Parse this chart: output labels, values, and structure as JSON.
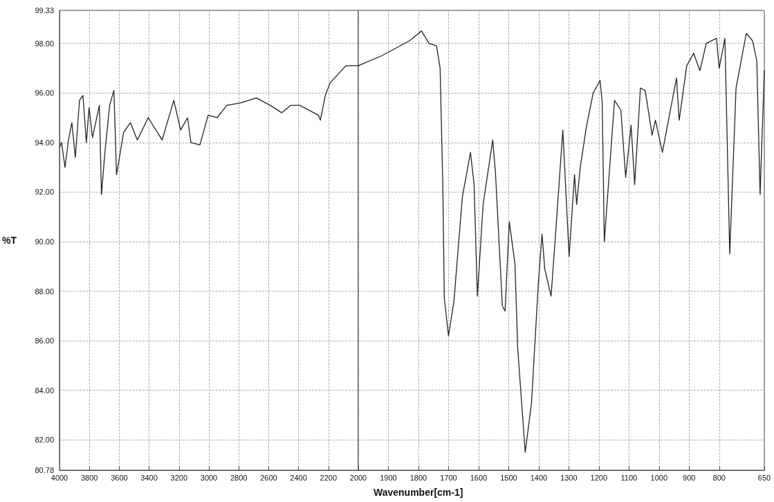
{
  "chart_data": [
    {
      "type": "line",
      "ylabel": "%T",
      "xlim": [
        4000,
        2000
      ],
      "xticks": [
        4000,
        3800,
        3600,
        3400,
        3200,
        3000,
        2800,
        2600,
        2400,
        2200,
        2000
      ],
      "ylim": [
        80.78,
        99.33
      ],
      "yticks": [
        80.78,
        {
          "value": 82,
          "label": "82.00"
        },
        {
          "value": 84,
          "label": "84.00"
        },
        {
          "value": 86,
          "label": "86.00"
        },
        {
          "value": 88,
          "label": "88.00"
        },
        {
          "value": 90,
          "label": "90.00"
        },
        {
          "value": 92,
          "label": "92.00"
        },
        {
          "value": 94,
          "label": "94.00"
        },
        {
          "value": 96,
          "label": "96.00"
        },
        {
          "value": 98,
          "label": "98.00"
        },
        99.33
      ],
      "grid": true,
      "marker": "none",
      "line_style": "solid",
      "x": [
        4000,
        3986,
        3963,
        3940,
        3917,
        3894,
        3866,
        3843,
        3820,
        3802,
        3779,
        3733,
        3719,
        3696,
        3664,
        3636,
        3618,
        3571,
        3525,
        3479,
        3406,
        3313,
        3235,
        3189,
        3143,
        3120,
        3060,
        3005,
        2945,
        2880,
        2788,
        2682,
        2590,
        2512,
        2452,
        2392,
        2267,
        2254,
        2221,
        2189,
        2083,
        2000
      ],
      "series": [
        {
          "color": "#222222",
          "values": [
            93.8,
            94.0,
            93.0,
            94.1,
            94.8,
            93.4,
            95.7,
            95.9,
            94.0,
            95.4,
            94.2,
            95.5,
            91.9,
            93.6,
            95.5,
            96.1,
            92.7,
            94.4,
            94.8,
            94.1,
            95.0,
            94.1,
            95.7,
            94.5,
            95.0,
            94.0,
            93.9,
            95.1,
            95.0,
            95.5,
            95.6,
            95.8,
            95.5,
            95.2,
            95.5,
            95.5,
            95.1,
            94.9,
            95.9,
            96.4,
            97.1,
            97.1
          ]
        }
      ]
    },
    {
      "type": "line",
      "xlabel": "Wavenumber[cm-1]",
      "tick_labels": "x",
      "xlim": [
        2000,
        650
      ],
      "xticks": [
        {
          "value": 2000,
          "label": null
        },
        1900,
        1800,
        1700,
        1600,
        1500,
        1400,
        1300,
        1200,
        1100,
        1000,
        900,
        800,
        650
      ],
      "ylim": [
        80.78,
        99.33
      ],
      "yticks": [
        80.78,
        82,
        84,
        86,
        88,
        90,
        92,
        94,
        96,
        98,
        99.33
      ],
      "grid": true,
      "marker": "none",
      "line_style": "solid",
      "x": [
        2000,
        1922,
        1830,
        1790,
        1765,
        1740,
        1728,
        1719,
        1714,
        1700,
        1682,
        1654,
        1627,
        1615,
        1604,
        1585,
        1553,
        1544,
        1521,
        1512,
        1498,
        1479,
        1470,
        1445,
        1424,
        1401,
        1389,
        1380,
        1359,
        1340,
        1320,
        1299,
        1281,
        1274,
        1262,
        1242,
        1219,
        1196,
        1189,
        1182,
        1148,
        1127,
        1111,
        1093,
        1081,
        1062,
        1046,
        1023,
        1012,
        989,
        942,
        933,
        908,
        885,
        864,
        843,
        809,
        800,
        781,
        765,
        744,
        710,
        689,
        675,
        664,
        650
      ],
      "series": [
        {
          "color": "#222222",
          "values": [
            97.1,
            97.5,
            98.1,
            98.5,
            98.0,
            97.9,
            97.0,
            92.3,
            87.7,
            86.2,
            87.6,
            91.8,
            93.6,
            92.3,
            87.8,
            91.5,
            94.1,
            92.8,
            87.4,
            87.2,
            90.8,
            89.1,
            85.7,
            81.5,
            83.5,
            88.4,
            90.3,
            88.9,
            87.8,
            91.0,
            94.5,
            89.4,
            92.7,
            91.5,
            93.0,
            94.6,
            96.0,
            96.5,
            95.6,
            90.0,
            95.7,
            95.3,
            92.6,
            94.7,
            92.3,
            96.2,
            96.1,
            94.3,
            94.9,
            93.6,
            96.6,
            94.9,
            97.1,
            97.6,
            96.9,
            98.0,
            98.2,
            97.0,
            98.2,
            89.5,
            96.2,
            98.4,
            98.1,
            97.3,
            91.9,
            96.9
          ]
        }
      ]
    }
  ]
}
